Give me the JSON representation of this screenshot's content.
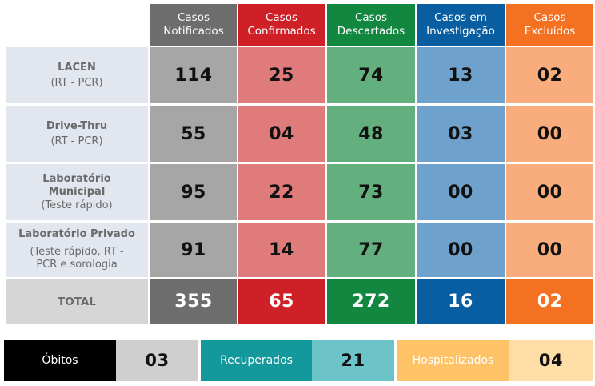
{
  "headers": [
    {
      "label": "Casos\nNotificados",
      "color": "#6d6d6d"
    },
    {
      "label": "Casos\nConfirmados",
      "color": "#cf2027"
    },
    {
      "label": "Casos\nDescartados",
      "color": "#11873f"
    },
    {
      "label": "Casos em\nInvestigação",
      "color": "#085ea1"
    },
    {
      "label": "Casos\nExcluídos",
      "color": "#f37120"
    }
  ],
  "cell_colors": [
    "#a6a6a6",
    "#e07b7c",
    "#63b07e",
    "#6ea1cb",
    "#f9ac7c"
  ],
  "rows": [
    {
      "name": "LACEN",
      "sub": "(RT - PCR)",
      "values": [
        "114",
        "25",
        "74",
        "13",
        "02"
      ]
    },
    {
      "name": "Drive-Thru",
      "sub": "(RT - PCR)",
      "values": [
        "55",
        "04",
        "48",
        "03",
        "00"
      ]
    },
    {
      "name": "Laboratório\nMunicipal",
      "sub": "(Teste rápido)",
      "values": [
        "95",
        "22",
        "73",
        "00",
        "00"
      ]
    },
    {
      "name": "Laboratório Privado",
      "sub": "(Teste rápido, RT -\nPCR e sorologia",
      "values": [
        "91",
        "14",
        "77",
        "00",
        "00"
      ]
    }
  ],
  "total": {
    "label": "TOTAL",
    "values": [
      "355",
      "65",
      "272",
      "16",
      "02"
    ]
  },
  "footer": [
    {
      "label": "Óbitos",
      "value": "03",
      "label_bg": "#000000",
      "label_color": "#ffffff",
      "value_bg": "#cfcfcf"
    },
    {
      "label": "Recuperados",
      "value": "21",
      "label_bg": "#13999b",
      "label_color": "#ffffff",
      "value_bg": "#6cc4c8"
    },
    {
      "label": "Hospitalizados",
      "value": "04",
      "label_bg": "#fec267",
      "label_color": "#ffffff",
      "value_bg": "#fedda6"
    }
  ]
}
